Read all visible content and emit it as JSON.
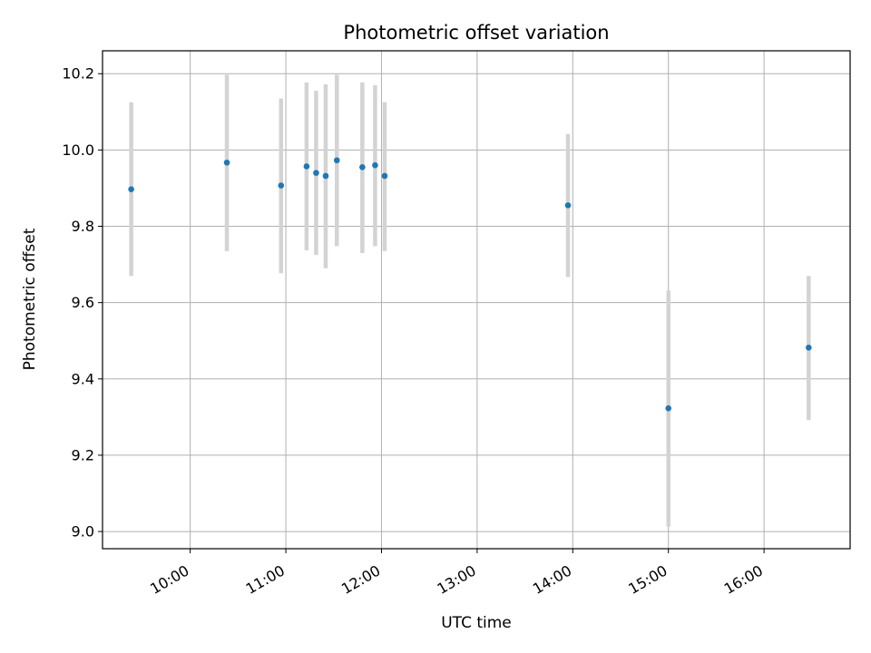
{
  "chart_data": {
    "type": "scatter",
    "title": "Photometric offset variation",
    "xlabel": "UTC time",
    "ylabel": "Photometric offset",
    "x_ticks": [
      "10:00",
      "11:00",
      "12:00",
      "13:00",
      "14:00",
      "15:00",
      "16:00"
    ],
    "y_ticks": [
      "9.0",
      "9.2",
      "9.4",
      "9.6",
      "9.8",
      "10.0",
      "10.2"
    ],
    "xlim": [
      "09:05",
      "16:54"
    ],
    "ylim": [
      8.955,
      10.26
    ],
    "grid": true,
    "series": [
      {
        "points": [
          {
            "x": "09:23",
            "y": 9.897,
            "err_low": 9.67,
            "err_high": 10.125
          },
          {
            "x": "10:23",
            "y": 9.967,
            "err_low": 9.735,
            "err_high": 10.197
          },
          {
            "x": "10:57",
            "y": 9.907,
            "err_low": 9.677,
            "err_high": 10.135
          },
          {
            "x": "11:13",
            "y": 9.957,
            "err_low": 9.737,
            "err_high": 10.177
          },
          {
            "x": "11:19",
            "y": 9.94,
            "err_low": 9.725,
            "err_high": 10.155
          },
          {
            "x": "11:25",
            "y": 9.932,
            "err_low": 9.69,
            "err_high": 10.172
          },
          {
            "x": "11:32",
            "y": 9.973,
            "err_low": 9.748,
            "err_high": 10.197
          },
          {
            "x": "11:48",
            "y": 9.955,
            "err_low": 9.73,
            "err_high": 10.177
          },
          {
            "x": "11:56",
            "y": 9.96,
            "err_low": 9.748,
            "err_high": 10.17
          },
          {
            "x": "12:02",
            "y": 9.932,
            "err_low": 9.735,
            "err_high": 10.125
          },
          {
            "x": "13:57",
            "y": 9.855,
            "err_low": 9.667,
            "err_high": 10.042
          },
          {
            "x": "15:00",
            "y": 9.323,
            "err_low": 9.013,
            "err_high": 9.632
          },
          {
            "x": "16:28",
            "y": 9.482,
            "err_low": 9.292,
            "err_high": 9.67
          }
        ]
      }
    ],
    "colors": {
      "point": "#1f77b4",
      "errorbar": "#d3d3d3",
      "grid": "#b0b0b0"
    }
  }
}
